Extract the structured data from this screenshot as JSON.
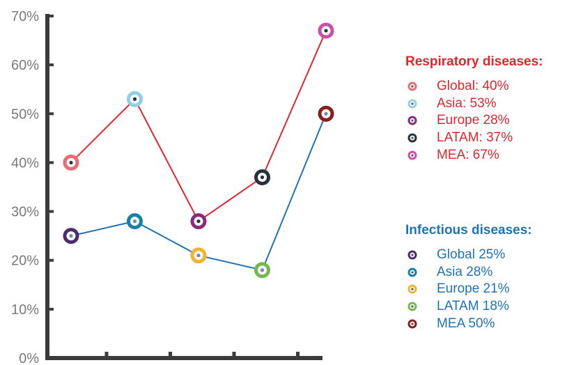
{
  "chart_data": {
    "type": "line",
    "title": "",
    "xlabel": "",
    "ylabel": "",
    "ylim": [
      0,
      70
    ],
    "yticks": [
      "0%",
      "10%",
      "20%",
      "30%",
      "40%",
      "50%",
      "60%",
      "70%"
    ],
    "categories": [
      "Global",
      "Asia",
      "Europe",
      "LATAM",
      "MEA"
    ],
    "grid": false,
    "legend_position": "right",
    "series": [
      {
        "key": "respiratory",
        "line_color": "#e0262d",
        "values": [
          40,
          53,
          28,
          37,
          67
        ],
        "marker_colors": [
          "#ee6b73",
          "#8fd0e6",
          "#8a2a7c",
          "#26323e",
          "#cf4fa8"
        ]
      },
      {
        "key": "infectious",
        "line_color": "#1f73b5",
        "values": [
          25,
          28,
          21,
          18,
          50
        ],
        "marker_colors": [
          "#4a2d6e",
          "#1580a8",
          "#f0b431",
          "#74b94e",
          "#8b1d1d"
        ]
      }
    ]
  },
  "legend": {
    "respiratory": {
      "title": "Respiratory diseases:",
      "items": [
        "Global: 40%",
        "Asia: 53%",
        "Europe 28%",
        "LATAM: 37%",
        "MEA: 67%"
      ]
    },
    "infectious": {
      "title": "Infectious diseases:",
      "items": [
        "Global 25%",
        "Asia 28%",
        "Europe 21%",
        "LATAM 18%",
        "MEA 50%"
      ]
    }
  }
}
